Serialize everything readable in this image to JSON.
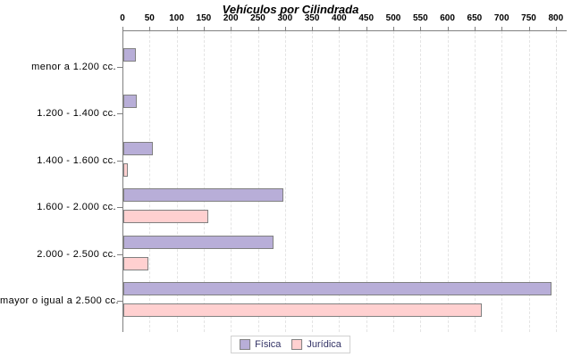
{
  "chart_data": {
    "type": "bar",
    "orientation": "horizontal",
    "title": "Vehículos por Cilindrada",
    "categories": [
      "menor a 1.200 cc.",
      "1.200 - 1.400 cc.",
      "1.400 - 1.600 cc.",
      "1.600 - 2.000 cc.",
      "2.000 - 2.500 cc.",
      "mayor o igual a 2.500 cc."
    ],
    "series": [
      {
        "name": "Física",
        "color": "#b8aed8",
        "values": [
          23,
          25,
          54,
          296,
          277,
          790
        ]
      },
      {
        "name": "Jurídica",
        "color": "#ffd0d0",
        "values": [
          0,
          0,
          9,
          157,
          47,
          662
        ]
      }
    ],
    "xlabel": "",
    "ylabel": "",
    "xlim": [
      0,
      800
    ],
    "xticks": [
      0,
      50,
      100,
      150,
      200,
      250,
      300,
      350,
      400,
      450,
      500,
      550,
      600,
      650,
      700,
      750,
      800
    ],
    "grid": true,
    "legend_position": "bottom",
    "colors": {
      "bar_border": "#808080",
      "axis": "#808080",
      "grid": "#e4e4e4",
      "title_text": "#000000",
      "tick_text": "#000000",
      "category_text": "#000000",
      "legend_text": "#333366",
      "legend_border": "#d0d0d0",
      "background": "#ffffff"
    }
  }
}
